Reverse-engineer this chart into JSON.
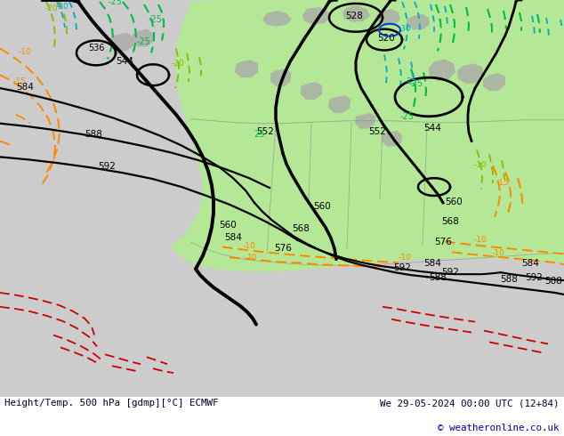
{
  "title_left": "Height/Temp. 500 hPa [gdmp][°C] ECMWF",
  "title_right": "We 29-05-2024 00:00 UTC (12+84)",
  "copyright": "© weatheronline.co.uk",
  "figsize": [
    6.34,
    4.9
  ],
  "dpi": 100,
  "bg_color": "#d2d2d2",
  "green_color": "#b8e8a0",
  "gray_land": "#b8b8b8",
  "black_contour": "#000000",
  "green_temp": "#00aa44",
  "cyan_temp": "#00cccc",
  "blue_temp": "#0055cc",
  "orange_temp": "#ff8800",
  "yellow_green_temp": "#88cc00",
  "red_temp": "#dd0000"
}
